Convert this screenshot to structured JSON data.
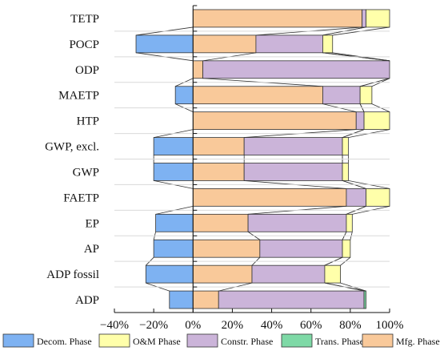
{
  "chart_data": {
    "type": "bar",
    "stacked": true,
    "orientation": "horizontal",
    "categories": [
      "TETP",
      "POCP",
      "ODP",
      "MAETP",
      "HTP",
      "GWP, excl.",
      "GWP",
      "FAETP",
      "EP",
      "AP",
      "ADP fossil",
      "ADP"
    ],
    "series": [
      {
        "name": "Decom. Phase",
        "color": "#7EB2F2",
        "values": [
          0,
          -29,
          0,
          -9,
          0,
          -20,
          -20,
          0,
          -19,
          -20,
          -24,
          -12
        ]
      },
      {
        "name": "Mfg. Phase",
        "color": "#F9C99A",
        "values": [
          86,
          32,
          5,
          66,
          83,
          26,
          26,
          78,
          28,
          34,
          30,
          13
        ]
      },
      {
        "name": "Constr. Phase",
        "color": "#CBB4D9",
        "values": [
          2,
          34,
          95,
          19,
          4,
          50,
          50,
          10,
          50,
          42,
          37,
          74
        ]
      },
      {
        "name": "Trans. Phase",
        "color": "#7ED9A6",
        "values": [
          0,
          0,
          0,
          0,
          0,
          0,
          0,
          0,
          0,
          0,
          0,
          1
        ]
      },
      {
        "name": "O&M Phase",
        "color": "#FFFFAA",
        "values": [
          12,
          5,
          0,
          6,
          13,
          3,
          3,
          12,
          3,
          4,
          8,
          0
        ]
      }
    ],
    "legend_order": [
      "Decom. Phase",
      "O&M Phase",
      "Constr. Phase",
      "Trans. Phase",
      "Mfg. Phase"
    ],
    "legend_position": "bottom",
    "xlim": [
      -40,
      100
    ],
    "x_ticks": [
      "−40%",
      "−20%",
      "0%",
      "20%",
      "40%",
      "60%",
      "80%",
      "100%"
    ],
    "x_tick_values": [
      -40,
      -20,
      0,
      20,
      40,
      60,
      80,
      100
    ],
    "grid": "horizontal separators",
    "xlabel": "",
    "ylabel": "",
    "title": ""
  }
}
